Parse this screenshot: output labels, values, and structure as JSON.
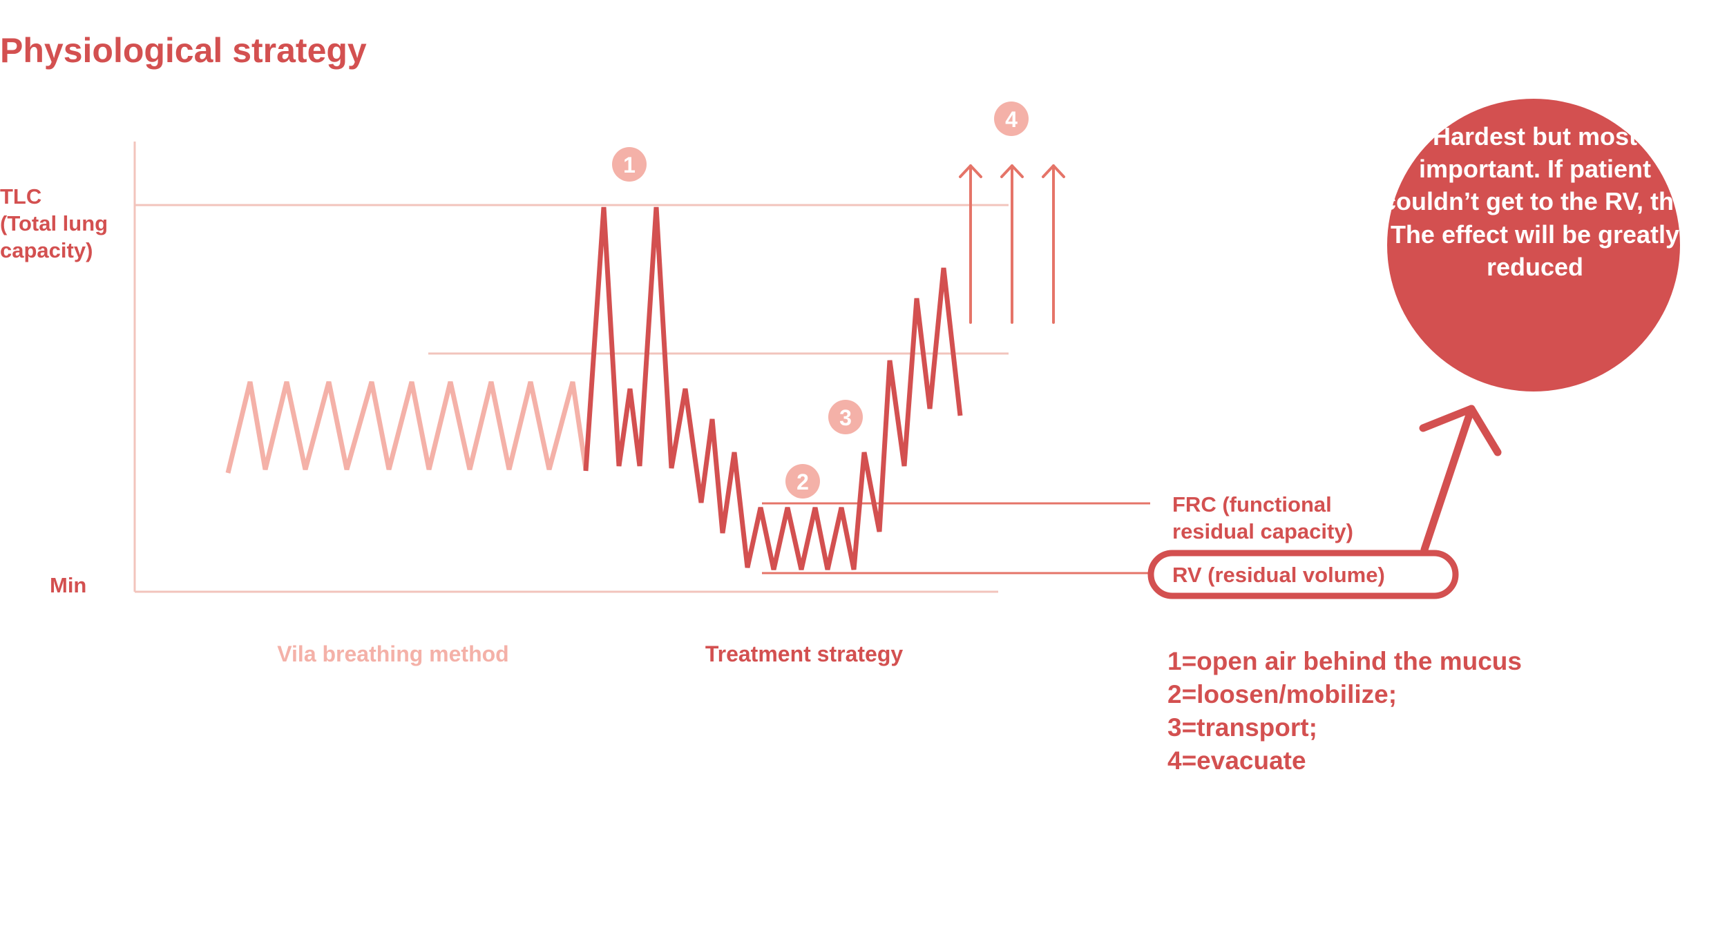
{
  "title": "Physiological strategy",
  "colors": {
    "dark": "#d35050",
    "medium": "#e57468",
    "light": "#f4b1a8",
    "faint": "#f2c4bc",
    "white": "#ffffff"
  },
  "axis": {
    "tlc_line1": "TLC",
    "tlc_line2": "(Total lung",
    "tlc_line3": "capacity)",
    "min": "Min"
  },
  "sections": {
    "vila": "Vila breathing method",
    "treatment": "Treatment strategy"
  },
  "levels": {
    "frc_line1": "FRC (functional",
    "frc_line2": "residual capacity)",
    "rv": "RV (residual volume)"
  },
  "steps": {
    "one": "1",
    "two": "2",
    "three": "3",
    "four": "4"
  },
  "callout": {
    "line1": "Hardest but most",
    "line2": "important. If patient",
    "line3": "couldn’t get to the RV, the",
    "line4": "The effect will be greatly",
    "line5": "reduced"
  },
  "legend": {
    "line1": "1=open air behind the mucus",
    "line2": "2=loosen/mobilize;",
    "line3": "3=transport;",
    "line4": "4=evacuate"
  }
}
